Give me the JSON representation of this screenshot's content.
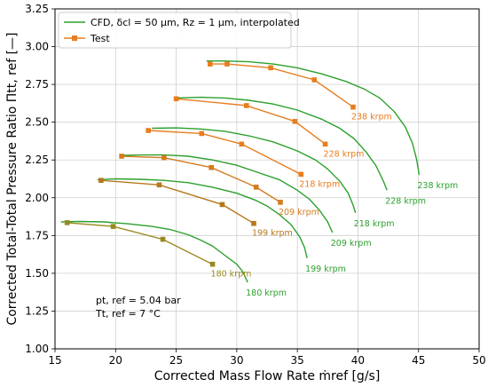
{
  "chart_data": {
    "type": "line",
    "xlabel": "Corrected Mass Flow Rate ṁref [g/s]",
    "ylabel": "Corrected Total-Total Pressure Ratio Πtt, ref [—]",
    "xlim": [
      15,
      50
    ],
    "ylim": [
      1.0,
      3.25
    ],
    "xticks": [
      "15",
      "20",
      "25",
      "30",
      "35",
      "40",
      "45",
      "50"
    ],
    "yticks": [
      "1.00",
      "1.25",
      "1.50",
      "1.75",
      "2.00",
      "2.25",
      "2.50",
      "2.75",
      "3.00",
      "3.25"
    ],
    "grid": true,
    "legend_position": "top-left",
    "legend": {
      "cfd": "CFD, δcl = 50 µm, Rz = 1 µm, interpolated",
      "test": "Test"
    },
    "annotation": {
      "line1": "pt, ref = 5.04 bar",
      "line2": "Tt, ref = 7 °C"
    },
    "colors": {
      "cfd": "#2ca02c",
      "test": "#e87d1e"
    },
    "cfd_series": [
      {
        "label": "180 krpm",
        "points": [
          [
            15.5,
            1.84
          ],
          [
            17,
            1.843
          ],
          [
            19,
            1.84
          ],
          [
            21,
            1.828
          ],
          [
            23,
            1.81
          ],
          [
            24.5,
            1.79
          ],
          [
            26,
            1.755
          ],
          [
            27,
            1.72
          ],
          [
            28,
            1.68
          ],
          [
            29,
            1.62
          ],
          [
            30,
            1.56
          ],
          [
            30.5,
            1.51
          ],
          [
            30.9,
            1.44
          ]
        ]
      },
      {
        "label": "199 krpm",
        "points": [
          [
            18.5,
            2.12
          ],
          [
            20,
            2.125
          ],
          [
            22,
            2.122
          ],
          [
            24,
            2.115
          ],
          [
            26,
            2.1
          ],
          [
            28,
            2.07
          ],
          [
            30,
            2.03
          ],
          [
            31.5,
            1.985
          ],
          [
            32.5,
            1.945
          ],
          [
            33.5,
            1.89
          ],
          [
            34.5,
            1.82
          ],
          [
            35.2,
            1.74
          ],
          [
            35.6,
            1.67
          ],
          [
            35.8,
            1.6
          ]
        ]
      },
      {
        "label": "209 krpm",
        "points": [
          [
            20.5,
            2.28
          ],
          [
            22,
            2.283
          ],
          [
            24,
            2.283
          ],
          [
            26,
            2.275
          ],
          [
            28,
            2.25
          ],
          [
            30,
            2.215
          ],
          [
            32,
            2.16
          ],
          [
            33.5,
            2.12
          ],
          [
            35,
            2.05
          ],
          [
            36,
            1.99
          ],
          [
            36.8,
            1.92
          ],
          [
            37.5,
            1.84
          ],
          [
            37.9,
            1.77
          ]
        ]
      },
      {
        "label": "218 krpm",
        "points": [
          [
            23,
            2.46
          ],
          [
            25,
            2.462
          ],
          [
            27,
            2.455
          ],
          [
            29,
            2.44
          ],
          [
            31,
            2.41
          ],
          [
            33,
            2.37
          ],
          [
            35,
            2.31
          ],
          [
            36.5,
            2.25
          ],
          [
            37.5,
            2.19
          ],
          [
            38.5,
            2.11
          ],
          [
            39.2,
            2.03
          ],
          [
            39.6,
            1.95
          ],
          [
            39.8,
            1.9
          ]
        ]
      },
      {
        "label": "228 krpm",
        "points": [
          [
            25,
            2.66
          ],
          [
            27,
            2.665
          ],
          [
            29,
            2.66
          ],
          [
            31,
            2.645
          ],
          [
            33,
            2.62
          ],
          [
            35,
            2.58
          ],
          [
            37,
            2.52
          ],
          [
            38.5,
            2.46
          ],
          [
            39.7,
            2.39
          ],
          [
            40.7,
            2.3
          ],
          [
            41.5,
            2.21
          ],
          [
            42.1,
            2.11
          ],
          [
            42.4,
            2.05
          ]
        ]
      },
      {
        "label": "238 krpm",
        "points": [
          [
            27.5,
            2.905
          ],
          [
            29,
            2.905
          ],
          [
            31,
            2.9
          ],
          [
            33,
            2.885
          ],
          [
            35,
            2.86
          ],
          [
            37,
            2.82
          ],
          [
            39,
            2.77
          ],
          [
            40.5,
            2.72
          ],
          [
            41.8,
            2.66
          ],
          [
            43,
            2.57
          ],
          [
            43.9,
            2.47
          ],
          [
            44.5,
            2.36
          ],
          [
            44.85,
            2.25
          ],
          [
            45.05,
            2.15
          ]
        ]
      }
    ],
    "test_series": [
      {
        "label": "180 krpm",
        "color": "#9a8a1e",
        "points": [
          [
            16.0,
            1.835
          ],
          [
            19.8,
            1.81
          ],
          [
            23.9,
            1.725
          ],
          [
            28.0,
            1.56
          ]
        ]
      },
      {
        "label": "199 krpm",
        "color": "#b5781b",
        "points": [
          [
            18.8,
            2.115
          ],
          [
            23.6,
            2.085
          ],
          [
            28.8,
            1.955
          ],
          [
            31.4,
            1.83
          ]
        ]
      },
      {
        "label": "209 krpm",
        "color": "#d47b1d",
        "points": [
          [
            20.5,
            2.275
          ],
          [
            24.0,
            2.265
          ],
          [
            27.9,
            2.2
          ],
          [
            31.6,
            2.07
          ],
          [
            33.6,
            1.97
          ]
        ]
      },
      {
        "label": "218 krpm",
        "color": "#e87d1e",
        "points": [
          [
            22.7,
            2.445
          ],
          [
            27.1,
            2.425
          ],
          [
            30.4,
            2.355
          ],
          [
            35.3,
            2.155
          ]
        ]
      },
      {
        "label": "228 krpm",
        "color": "#e87d1e",
        "points": [
          [
            25.0,
            2.655
          ],
          [
            30.8,
            2.61
          ],
          [
            34.8,
            2.505
          ],
          [
            37.3,
            2.355
          ]
        ]
      },
      {
        "label": "238 krpm",
        "color": "#e87d1e",
        "points": [
          [
            27.8,
            2.885
          ],
          [
            29.2,
            2.885
          ],
          [
            32.8,
            2.86
          ],
          [
            36.4,
            2.78
          ],
          [
            39.6,
            2.6
          ]
        ]
      }
    ]
  }
}
